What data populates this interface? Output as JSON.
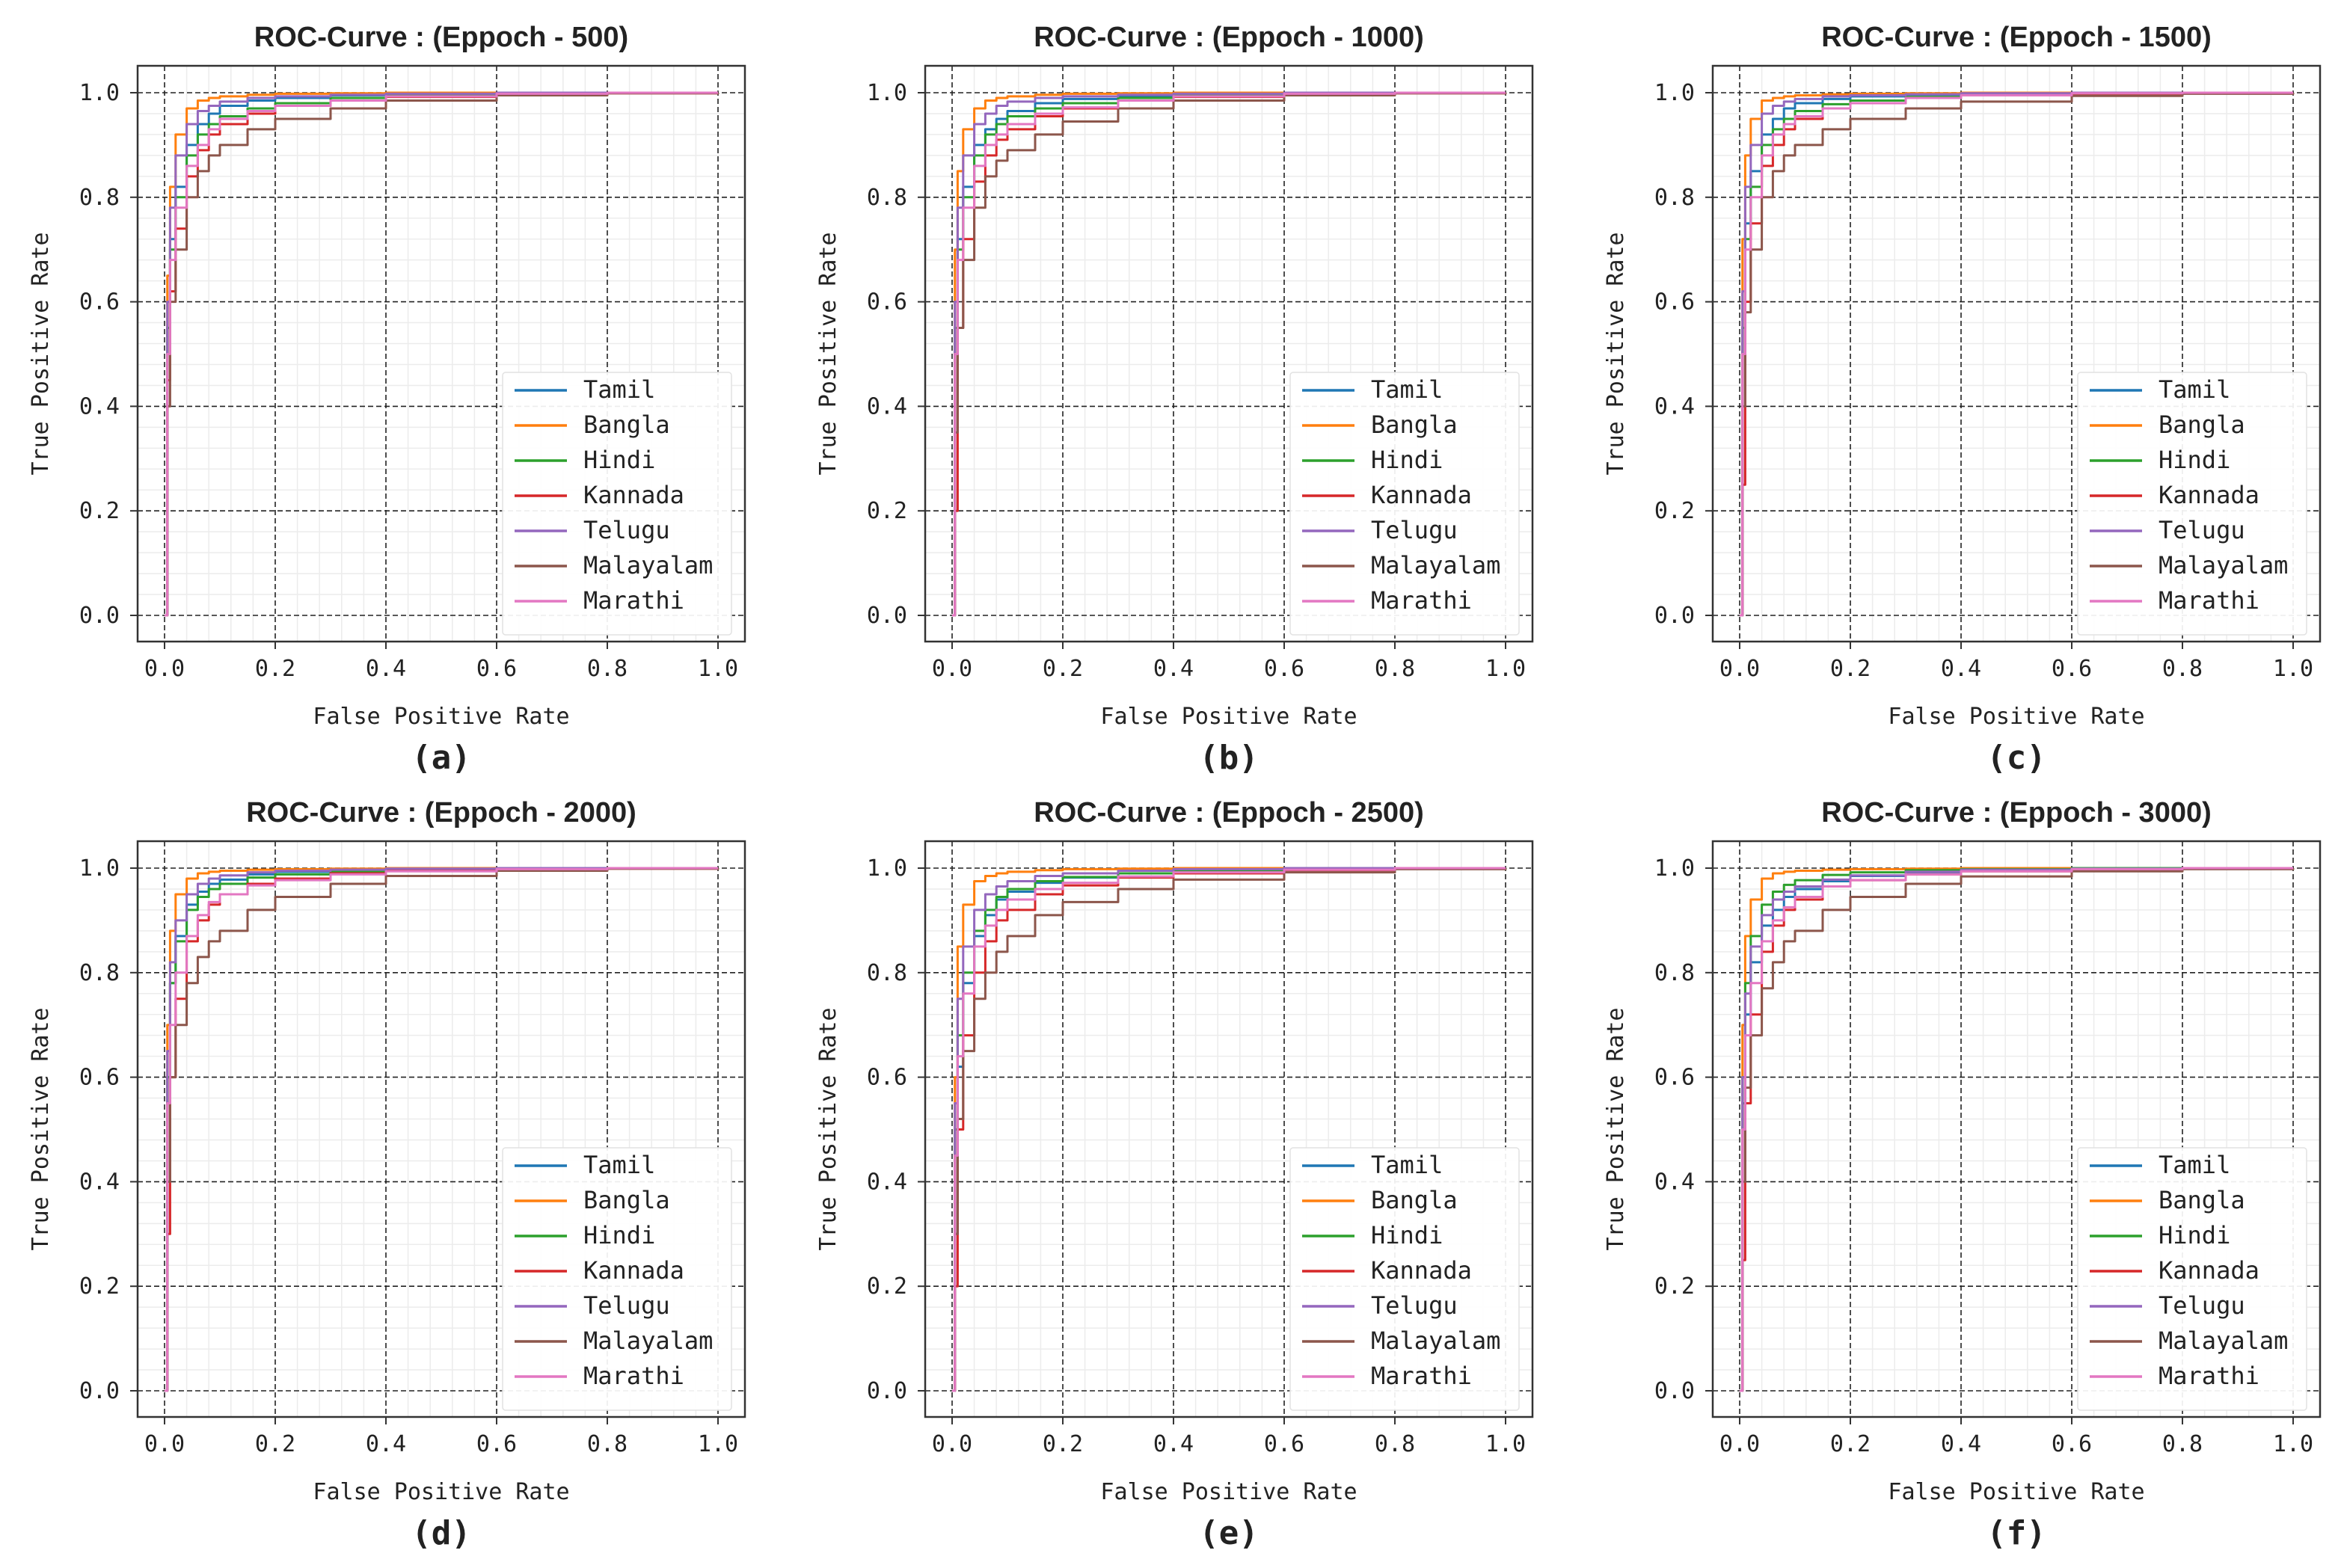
{
  "figure": {
    "xlabel": "False Positive Rate",
    "ylabel": "True Positive Rate",
    "x_ticks": [
      "0.0",
      "0.2",
      "0.4",
      "0.6",
      "0.8",
      "1.0"
    ],
    "y_ticks": [
      "0.0",
      "0.2",
      "0.4",
      "0.6",
      "0.8",
      "1.0"
    ],
    "languages": [
      "Tamil",
      "Bangla",
      "Hindi",
      "Kannada",
      "Telugu",
      "Malayalam",
      "Marathi"
    ],
    "colors": {
      "Tamil": "#1f77b4",
      "Bangla": "#ff7f0e",
      "Hindi": "#2ca02c",
      "Kannada": "#d62728",
      "Telugu": "#9467bd",
      "Malayalam": "#8c564b",
      "Marathi": "#e377c2"
    }
  },
  "chart_data": [
    {
      "type": "line",
      "caption": "(a)",
      "title": "ROC-Curve : (Eppoch - 500)",
      "xlabel": "False Positive Rate",
      "ylabel": "True Positive Rate",
      "xlim": [
        0,
        1
      ],
      "ylim": [
        0,
        1
      ],
      "grid": true,
      "legend": "lower right",
      "x": [
        0,
        0.005,
        0.01,
        0.02,
        0.04,
        0.06,
        0.08,
        0.1,
        0.15,
        0.2,
        0.3,
        0.4,
        0.6,
        0.8,
        1.0
      ],
      "series": [
        {
          "name": "Tamil",
          "values": [
            0,
            0.55,
            0.72,
            0.82,
            0.9,
            0.94,
            0.96,
            0.975,
            0.985,
            0.99,
            0.995,
            0.997,
            0.999,
            1.0,
            1.0
          ]
        },
        {
          "name": "Bangla",
          "values": [
            0,
            0.65,
            0.82,
            0.92,
            0.97,
            0.985,
            0.99,
            0.993,
            0.996,
            0.998,
            0.999,
            1.0,
            1.0,
            1.0,
            1.0
          ]
        },
        {
          "name": "Hindi",
          "values": [
            0,
            0.55,
            0.7,
            0.8,
            0.88,
            0.92,
            0.94,
            0.955,
            0.97,
            0.98,
            0.99,
            0.995,
            0.998,
            1.0,
            1.0
          ]
        },
        {
          "name": "Kannada",
          "values": [
            0,
            0.45,
            0.62,
            0.74,
            0.84,
            0.89,
            0.92,
            0.94,
            0.96,
            0.975,
            0.985,
            0.992,
            0.997,
            0.999,
            1.0
          ]
        },
        {
          "name": "Telugu",
          "values": [
            0,
            0.6,
            0.78,
            0.88,
            0.94,
            0.965,
            0.975,
            0.983,
            0.99,
            0.993,
            0.996,
            0.998,
            1.0,
            1.0,
            1.0
          ]
        },
        {
          "name": "Malayalam",
          "values": [
            0,
            0.4,
            0.6,
            0.7,
            0.8,
            0.85,
            0.88,
            0.9,
            0.93,
            0.95,
            0.97,
            0.985,
            0.995,
            0.999,
            1.0
          ]
        },
        {
          "name": "Marathi",
          "values": [
            0,
            0.5,
            0.68,
            0.78,
            0.86,
            0.9,
            0.93,
            0.95,
            0.965,
            0.975,
            0.985,
            0.993,
            0.998,
            1.0,
            1.0
          ]
        }
      ]
    },
    {
      "type": "line",
      "caption": "(b)",
      "title": "ROC-Curve : (Eppoch - 1000)",
      "xlabel": "False Positive Rate",
      "ylabel": "True Positive Rate",
      "xlim": [
        0,
        1
      ],
      "ylim": [
        0,
        1
      ],
      "grid": true,
      "legend": "lower right",
      "x": [
        0,
        0.005,
        0.01,
        0.02,
        0.04,
        0.06,
        0.08,
        0.1,
        0.15,
        0.2,
        0.3,
        0.4,
        0.6,
        0.8,
        1.0
      ],
      "series": [
        {
          "name": "Tamil",
          "values": [
            0,
            0.55,
            0.72,
            0.82,
            0.9,
            0.93,
            0.95,
            0.965,
            0.98,
            0.988,
            0.994,
            0.997,
            0.999,
            1.0,
            1.0
          ]
        },
        {
          "name": "Bangla",
          "values": [
            0,
            0.7,
            0.85,
            0.93,
            0.97,
            0.985,
            0.99,
            0.993,
            0.996,
            0.998,
            0.999,
            1.0,
            1.0,
            1.0,
            1.0
          ]
        },
        {
          "name": "Hindi",
          "values": [
            0,
            0.55,
            0.7,
            0.8,
            0.88,
            0.92,
            0.94,
            0.955,
            0.97,
            0.98,
            0.99,
            0.995,
            0.998,
            1.0,
            1.0
          ]
        },
        {
          "name": "Kannada",
          "values": [
            0,
            0.2,
            0.55,
            0.72,
            0.83,
            0.88,
            0.91,
            0.93,
            0.955,
            0.97,
            0.985,
            0.992,
            0.997,
            0.999,
            1.0
          ]
        },
        {
          "name": "Telugu",
          "values": [
            0,
            0.6,
            0.78,
            0.88,
            0.94,
            0.96,
            0.975,
            0.983,
            0.99,
            0.993,
            0.996,
            0.998,
            1.0,
            1.0,
            1.0
          ]
        },
        {
          "name": "Malayalam",
          "values": [
            0,
            0.35,
            0.55,
            0.68,
            0.78,
            0.84,
            0.87,
            0.89,
            0.92,
            0.945,
            0.97,
            0.985,
            0.995,
            0.999,
            1.0
          ]
        },
        {
          "name": "Marathi",
          "values": [
            0,
            0.5,
            0.68,
            0.78,
            0.86,
            0.9,
            0.92,
            0.94,
            0.96,
            0.972,
            0.985,
            0.993,
            0.998,
            1.0,
            1.0
          ]
        }
      ]
    },
    {
      "type": "line",
      "caption": "(c)",
      "title": "ROC-Curve : (Eppoch - 1500)",
      "xlabel": "False Positive Rate",
      "ylabel": "True Positive Rate",
      "xlim": [
        0,
        1
      ],
      "ylim": [
        0,
        1
      ],
      "grid": true,
      "legend": "lower right",
      "x": [
        0,
        0.005,
        0.01,
        0.02,
        0.04,
        0.06,
        0.08,
        0.1,
        0.15,
        0.2,
        0.3,
        0.4,
        0.6,
        0.8,
        1.0
      ],
      "series": [
        {
          "name": "Tamil",
          "values": [
            0,
            0.55,
            0.75,
            0.85,
            0.92,
            0.95,
            0.97,
            0.98,
            0.988,
            0.993,
            0.996,
            0.998,
            1.0,
            1.0,
            1.0
          ]
        },
        {
          "name": "Bangla",
          "values": [
            0,
            0.72,
            0.88,
            0.95,
            0.985,
            0.99,
            0.993,
            0.995,
            0.997,
            0.998,
            0.999,
            1.0,
            1.0,
            1.0,
            1.0
          ]
        },
        {
          "name": "Hindi",
          "values": [
            0,
            0.55,
            0.72,
            0.82,
            0.9,
            0.93,
            0.95,
            0.965,
            0.978,
            0.985,
            0.992,
            0.996,
            0.998,
            1.0,
            1.0
          ]
        },
        {
          "name": "Kannada",
          "values": [
            0,
            0.25,
            0.6,
            0.75,
            0.86,
            0.9,
            0.93,
            0.95,
            0.97,
            0.98,
            0.99,
            0.995,
            0.998,
            0.999,
            1.0
          ]
        },
        {
          "name": "Telugu",
          "values": [
            0,
            0.62,
            0.82,
            0.9,
            0.96,
            0.975,
            0.983,
            0.988,
            0.993,
            0.995,
            0.997,
            0.999,
            1.0,
            1.0,
            1.0
          ]
        },
        {
          "name": "Malayalam",
          "values": [
            0,
            0.4,
            0.58,
            0.7,
            0.8,
            0.85,
            0.88,
            0.9,
            0.93,
            0.95,
            0.97,
            0.983,
            0.994,
            0.998,
            1.0
          ]
        },
        {
          "name": "Marathi",
          "values": [
            0,
            0.5,
            0.7,
            0.8,
            0.88,
            0.92,
            0.94,
            0.955,
            0.97,
            0.98,
            0.99,
            0.995,
            0.999,
            1.0,
            1.0
          ]
        }
      ]
    },
    {
      "type": "line",
      "caption": "(d)",
      "title": "ROC-Curve : (Eppoch - 2000)",
      "xlabel": "False Positive Rate",
      "ylabel": "True Positive Rate",
      "xlim": [
        0,
        1
      ],
      "ylim": [
        0,
        1
      ],
      "grid": true,
      "legend": "lower right",
      "x": [
        0,
        0.005,
        0.01,
        0.02,
        0.04,
        0.06,
        0.08,
        0.1,
        0.15,
        0.2,
        0.3,
        0.4,
        0.6,
        0.8,
        1.0
      ],
      "series": [
        {
          "name": "Tamil",
          "values": [
            0,
            0.6,
            0.78,
            0.87,
            0.93,
            0.955,
            0.97,
            0.978,
            0.988,
            0.993,
            0.996,
            0.998,
            1.0,
            1.0,
            1.0
          ]
        },
        {
          "name": "Bangla",
          "values": [
            0,
            0.7,
            0.88,
            0.95,
            0.98,
            0.99,
            0.993,
            0.995,
            0.997,
            0.998,
            0.999,
            1.0,
            1.0,
            1.0,
            1.0
          ]
        },
        {
          "name": "Hindi",
          "values": [
            0,
            0.6,
            0.78,
            0.86,
            0.92,
            0.945,
            0.96,
            0.97,
            0.982,
            0.988,
            0.994,
            0.997,
            0.999,
            1.0,
            1.0
          ]
        },
        {
          "name": "Kannada",
          "values": [
            0,
            0.3,
            0.6,
            0.75,
            0.86,
            0.9,
            0.93,
            0.95,
            0.97,
            0.98,
            0.99,
            0.995,
            0.998,
            0.999,
            1.0
          ]
        },
        {
          "name": "Telugu",
          "values": [
            0,
            0.65,
            0.82,
            0.9,
            0.95,
            0.97,
            0.98,
            0.986,
            0.992,
            0.995,
            0.997,
            0.999,
            1.0,
            1.0,
            1.0
          ]
        },
        {
          "name": "Malayalam",
          "values": [
            0,
            0.4,
            0.6,
            0.7,
            0.78,
            0.83,
            0.86,
            0.88,
            0.92,
            0.945,
            0.97,
            0.985,
            0.995,
            0.999,
            1.0
          ]
        },
        {
          "name": "Marathi",
          "values": [
            0,
            0.55,
            0.7,
            0.8,
            0.87,
            0.91,
            0.935,
            0.95,
            0.967,
            0.977,
            0.988,
            0.994,
            0.998,
            1.0,
            1.0
          ]
        }
      ]
    },
    {
      "type": "line",
      "caption": "(e)",
      "title": "ROC-Curve : (Eppoch - 2500)",
      "xlabel": "False Positive Rate",
      "ylabel": "True Positive Rate",
      "xlim": [
        0,
        1
      ],
      "ylim": [
        0,
        1
      ],
      "grid": true,
      "legend": "lower right",
      "x": [
        0,
        0.005,
        0.01,
        0.02,
        0.04,
        0.06,
        0.08,
        0.1,
        0.15,
        0.2,
        0.3,
        0.4,
        0.6,
        0.8,
        1.0
      ],
      "series": [
        {
          "name": "Tamil",
          "values": [
            0,
            0.3,
            0.62,
            0.78,
            0.87,
            0.91,
            0.94,
            0.955,
            0.972,
            0.982,
            0.99,
            0.995,
            0.999,
            1.0,
            1.0
          ]
        },
        {
          "name": "Bangla",
          "values": [
            0,
            0.6,
            0.85,
            0.93,
            0.975,
            0.985,
            0.99,
            0.993,
            0.996,
            0.998,
            0.999,
            1.0,
            1.0,
            1.0,
            1.0
          ]
        },
        {
          "name": "Hindi",
          "values": [
            0,
            0.5,
            0.68,
            0.8,
            0.88,
            0.92,
            0.945,
            0.96,
            0.975,
            0.983,
            0.99,
            0.995,
            0.998,
            1.0,
            1.0
          ]
        },
        {
          "name": "Kannada",
          "values": [
            0,
            0.2,
            0.5,
            0.68,
            0.8,
            0.86,
            0.9,
            0.92,
            0.95,
            0.967,
            0.982,
            0.99,
            0.996,
            0.999,
            1.0
          ]
        },
        {
          "name": "Telugu",
          "values": [
            0,
            0.55,
            0.75,
            0.85,
            0.92,
            0.95,
            0.965,
            0.975,
            0.985,
            0.99,
            0.995,
            0.998,
            1.0,
            1.0,
            1.0
          ]
        },
        {
          "name": "Malayalam",
          "values": [
            0,
            0.3,
            0.52,
            0.65,
            0.75,
            0.8,
            0.84,
            0.87,
            0.91,
            0.935,
            0.96,
            0.978,
            0.992,
            0.998,
            1.0
          ]
        },
        {
          "name": "Marathi",
          "values": [
            0,
            0.45,
            0.64,
            0.76,
            0.85,
            0.89,
            0.92,
            0.94,
            0.96,
            0.972,
            0.984,
            0.992,
            0.997,
            1.0,
            1.0
          ]
        }
      ]
    },
    {
      "type": "line",
      "caption": "(f)",
      "title": "ROC-Curve : (Eppoch - 3000)",
      "xlabel": "False Positive Rate",
      "ylabel": "True Positive Rate",
      "xlim": [
        0,
        1
      ],
      "ylim": [
        0,
        1
      ],
      "grid": true,
      "legend": "lower right",
      "x": [
        0,
        0.005,
        0.01,
        0.02,
        0.04,
        0.06,
        0.08,
        0.1,
        0.15,
        0.2,
        0.3,
        0.4,
        0.6,
        0.8,
        1.0
      ],
      "series": [
        {
          "name": "Tamil",
          "values": [
            0,
            0.55,
            0.72,
            0.82,
            0.89,
            0.92,
            0.945,
            0.96,
            0.975,
            0.985,
            0.992,
            0.996,
            0.999,
            1.0,
            1.0
          ]
        },
        {
          "name": "Bangla",
          "values": [
            0,
            0.7,
            0.87,
            0.94,
            0.98,
            0.99,
            0.993,
            0.995,
            0.997,
            0.998,
            0.999,
            1.0,
            1.0,
            1.0,
            1.0
          ]
        },
        {
          "name": "Hindi",
          "values": [
            0,
            0.6,
            0.78,
            0.87,
            0.93,
            0.955,
            0.968,
            0.977,
            0.987,
            0.992,
            0.996,
            0.998,
            1.0,
            1.0,
            1.0
          ]
        },
        {
          "name": "Kannada",
          "values": [
            0,
            0.25,
            0.55,
            0.72,
            0.84,
            0.89,
            0.92,
            0.94,
            0.965,
            0.977,
            0.988,
            0.994,
            0.998,
            0.999,
            1.0
          ]
        },
        {
          "name": "Telugu",
          "values": [
            0,
            0.6,
            0.76,
            0.85,
            0.91,
            0.94,
            0.955,
            0.965,
            0.978,
            0.986,
            0.993,
            0.997,
            0.999,
            1.0,
            1.0
          ]
        },
        {
          "name": "Malayalam",
          "values": [
            0,
            0.4,
            0.58,
            0.68,
            0.77,
            0.82,
            0.86,
            0.88,
            0.92,
            0.945,
            0.97,
            0.984,
            0.994,
            0.998,
            1.0
          ]
        },
        {
          "name": "Marathi",
          "values": [
            0,
            0.5,
            0.68,
            0.78,
            0.86,
            0.9,
            0.925,
            0.945,
            0.965,
            0.977,
            0.988,
            0.994,
            0.998,
            1.0,
            1.0
          ]
        }
      ]
    }
  ]
}
